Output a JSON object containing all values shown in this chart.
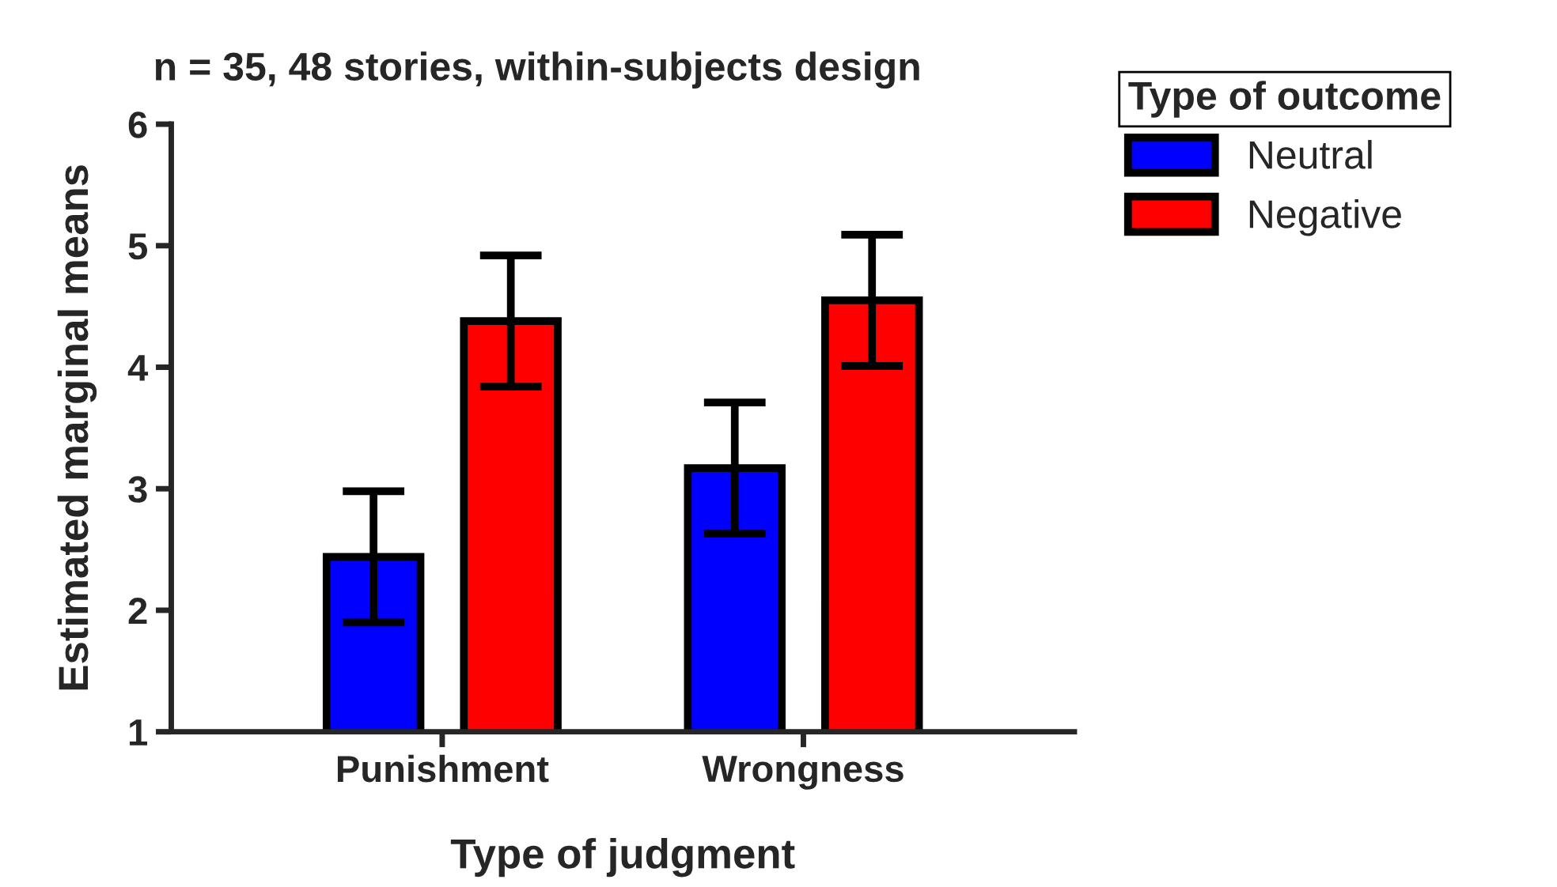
{
  "chart_data": {
    "type": "bar",
    "title": "n = 35, 48 stories, within-subjects design",
    "xlabel": "Type of judgment",
    "ylabel": "Estimated marginal means",
    "legend_title": "Type of outcome",
    "categories": [
      "Punishment",
      "Wrongness"
    ],
    "series": [
      {
        "name": "Neutral",
        "color": "#0000ff",
        "values": [
          2.44,
          3.17
        ],
        "errors": [
          0.54,
          0.54
        ]
      },
      {
        "name": "Negative",
        "color": "#ff0000",
        "values": [
          4.38,
          4.55
        ],
        "errors": [
          0.54,
          0.54
        ]
      }
    ],
    "ylim": [
      1,
      6
    ],
    "yticks": [
      1,
      2,
      3,
      4,
      5,
      6
    ],
    "grid": false,
    "legend": "top right"
  }
}
